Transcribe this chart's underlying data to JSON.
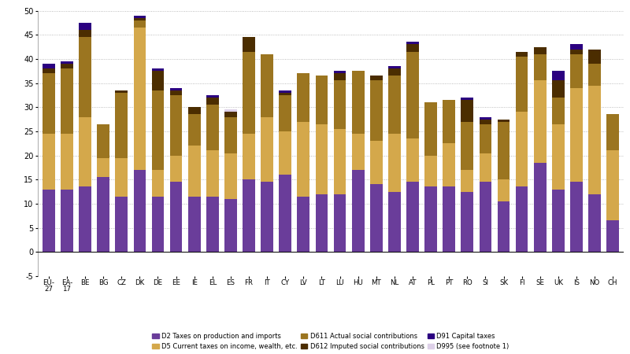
{
  "categories": [
    "EU-\n27",
    "EA-\n17",
    "BE",
    "BG",
    "CZ",
    "DK",
    "DE",
    "EE",
    "IE",
    "EL",
    "ES",
    "FR",
    "IT",
    "CY",
    "LV",
    "LT",
    "LU",
    "HU",
    "MT",
    "NL",
    "AT",
    "PL",
    "PT",
    "RO",
    "SI",
    "SK",
    "FI",
    "SE",
    "UK",
    "IS",
    "NO",
    "CH"
  ],
  "D2": [
    13.0,
    13.0,
    13.5,
    15.5,
    11.5,
    17.0,
    11.5,
    14.5,
    11.5,
    11.5,
    11.0,
    15.0,
    14.5,
    16.0,
    11.5,
    12.0,
    12.0,
    17.0,
    14.0,
    12.5,
    14.5,
    13.5,
    13.5,
    12.5,
    14.5,
    10.5,
    13.5,
    18.5,
    13.0,
    14.5,
    12.0,
    6.5
  ],
  "D5": [
    11.5,
    11.5,
    14.5,
    4.0,
    8.0,
    29.5,
    5.5,
    5.5,
    10.5,
    9.5,
    9.5,
    9.5,
    13.5,
    9.0,
    15.5,
    14.5,
    13.5,
    7.5,
    9.0,
    12.0,
    9.0,
    6.5,
    9.0,
    4.5,
    6.0,
    4.5,
    15.5,
    17.0,
    13.5,
    19.5,
    22.5,
    14.5
  ],
  "D611": [
    12.5,
    13.5,
    16.5,
    7.0,
    13.5,
    1.5,
    16.5,
    12.5,
    6.5,
    9.5,
    7.5,
    17.0,
    13.0,
    7.5,
    10.0,
    10.0,
    10.0,
    13.0,
    12.5,
    12.0,
    18.0,
    11.0,
    9.0,
    10.0,
    6.0,
    12.0,
    11.5,
    5.5,
    5.5,
    7.0,
    4.5,
    7.5
  ],
  "D612": [
    1.0,
    1.0,
    1.5,
    0.0,
    0.5,
    0.5,
    4.0,
    1.0,
    1.5,
    1.5,
    1.0,
    3.0,
    0.0,
    0.5,
    0.0,
    0.0,
    1.5,
    0.0,
    1.0,
    1.5,
    1.5,
    0.0,
    0.0,
    4.5,
    1.0,
    0.5,
    1.0,
    1.5,
    3.5,
    1.0,
    3.0,
    0.0
  ],
  "D91": [
    1.0,
    0.5,
    1.5,
    0.0,
    0.0,
    0.5,
    0.5,
    0.5,
    0.0,
    0.5,
    0.0,
    0.0,
    0.0,
    0.5,
    0.0,
    0.0,
    0.5,
    0.0,
    0.0,
    0.5,
    0.5,
    0.0,
    0.0,
    0.5,
    0.5,
    0.0,
    0.0,
    0.0,
    2.0,
    1.0,
    0.0,
    0.0
  ],
  "D995": [
    0.0,
    0.0,
    0.0,
    0.0,
    0.0,
    0.0,
    0.0,
    0.0,
    0.0,
    0.0,
    0.5,
    0.0,
    0.0,
    0.0,
    0.0,
    0.0,
    0.0,
    0.0,
    0.0,
    0.0,
    0.0,
    0.0,
    0.0,
    0.0,
    0.0,
    0.0,
    0.0,
    0.0,
    0.0,
    0.0,
    0.0,
    0.0
  ],
  "colors": {
    "D2": "#6A3D9A",
    "D5": "#D4A84B",
    "D611": "#9B7520",
    "D612": "#4B2D00",
    "D91": "#2B0080",
    "D995": "#DDD0E8"
  },
  "legend_labels": {
    "D2": "D2 Taxes on production and imports",
    "D5": "D5 Current taxes on income, wealth, etc.",
    "D611": "D611 Actual social contributions",
    "D612": "D612 Imputed social contributions",
    "D91": "D91 Capital taxes",
    "D995": "D995 (see footnote 1)"
  },
  "ylim": [
    -5,
    50
  ],
  "yticks": [
    0,
    5,
    10,
    15,
    20,
    25,
    30,
    35,
    40,
    45,
    50
  ],
  "background_color": "#FFFFFF"
}
